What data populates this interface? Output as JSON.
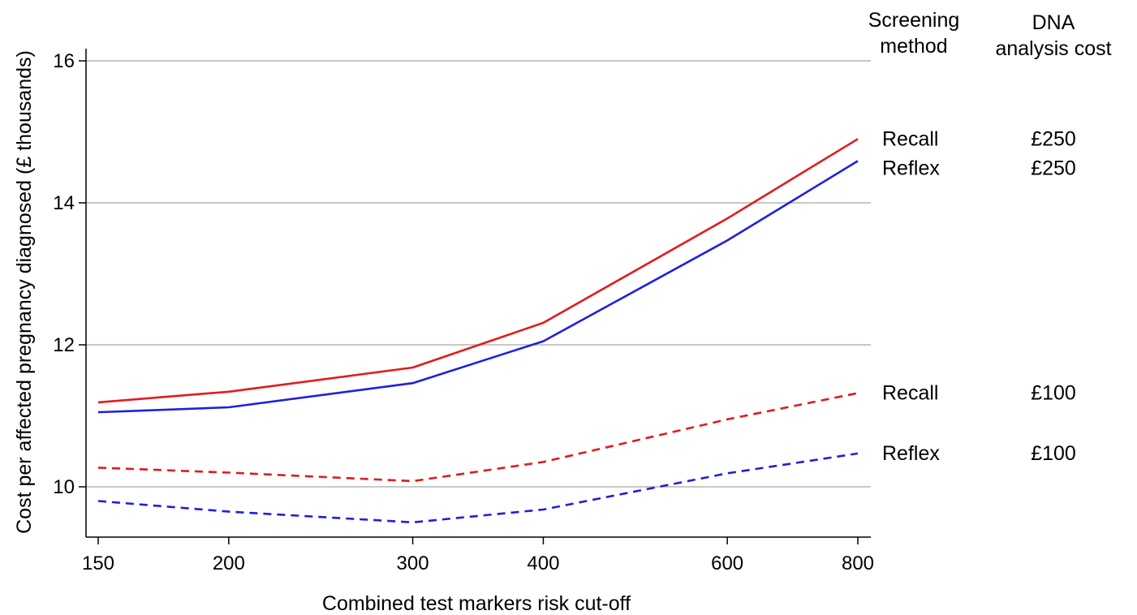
{
  "chart_data": {
    "type": "line",
    "title": "",
    "xlabel": "Combined test markers risk cut-off",
    "ylabel": "Cost per affected pregnancy diagnosed (£ thousands)",
    "x_scale": "log",
    "x": [
      150,
      200,
      300,
      400,
      600,
      800
    ],
    "xticks": [
      "150",
      "200",
      "300",
      "400",
      "600",
      "800"
    ],
    "yticks": [
      "10",
      "12",
      "14",
      "16"
    ],
    "ylim": [
      9.3,
      16.0
    ],
    "grid": "horizontal",
    "legend_headers": {
      "method": [
        "Screening",
        "method"
      ],
      "cost": [
        "DNA",
        "analysis cost"
      ]
    },
    "series": [
      {
        "method": "Recall",
        "cost": "£250",
        "color": "#e31a1c",
        "dash": "solid",
        "values": [
          11.19,
          11.34,
          11.68,
          12.31,
          13.78,
          14.9
        ]
      },
      {
        "method": "Reflex",
        "cost": "£250",
        "color": "#1f1fe0",
        "dash": "solid",
        "values": [
          11.05,
          11.12,
          11.46,
          12.05,
          13.47,
          14.59
        ]
      },
      {
        "method": "Recall",
        "cost": "£100",
        "color": "#e31a1c",
        "dash": "dashed",
        "values": [
          10.27,
          10.2,
          10.08,
          10.35,
          10.95,
          11.32
        ]
      },
      {
        "method": "Reflex",
        "cost": "£100",
        "color": "#1f1fe0",
        "dash": "dashed",
        "values": [
          9.8,
          9.65,
          9.5,
          9.68,
          10.19,
          10.47
        ]
      }
    ]
  }
}
